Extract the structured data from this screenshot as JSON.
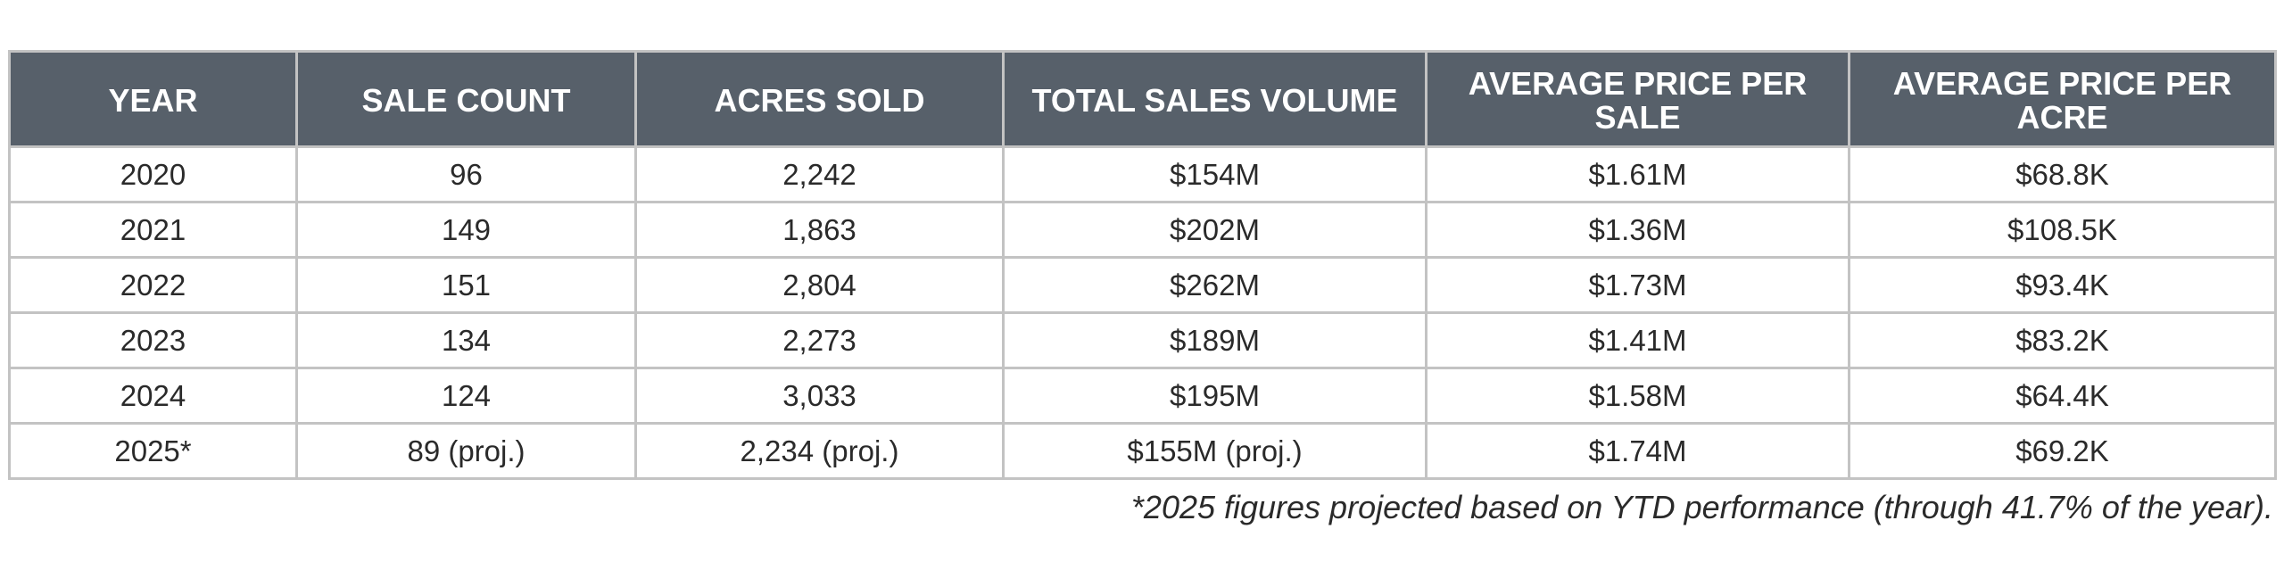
{
  "table": {
    "headers": [
      "YEAR",
      "SALE COUNT",
      "ACRES SOLD",
      "TOTAL SALES VOLUME",
      "AVERAGE PRICE PER SALE",
      "AVERAGE PRICE PER ACRE"
    ],
    "rows": [
      [
        "2020",
        "96",
        "2,242",
        "$154M",
        "$1.61M",
        "$68.8K"
      ],
      [
        "2021",
        "149",
        "1,863",
        "$202M",
        "$1.36M",
        "$108.5K"
      ],
      [
        "2022",
        "151",
        "2,804",
        "$262M",
        "$1.73M",
        "$93.4K"
      ],
      [
        "2023",
        "134",
        "2,273",
        "$189M",
        "$1.41M",
        "$83.2K"
      ],
      [
        "2024",
        "124",
        "3,033",
        "$195M",
        "$1.58M",
        "$64.4K"
      ],
      [
        "2025*",
        "89 (proj.)",
        "2,234 (proj.)",
        "$155M (proj.)",
        "$1.74M",
        "$69.2K"
      ]
    ]
  },
  "footnote": "*2025 figures projected based on YTD performance (through 41.7% of the year).",
  "colors": {
    "header_background": "#57606a",
    "header_text": "#ffffff",
    "border": "#c3c3c3",
    "body_text": "#2a2a2a"
  }
}
